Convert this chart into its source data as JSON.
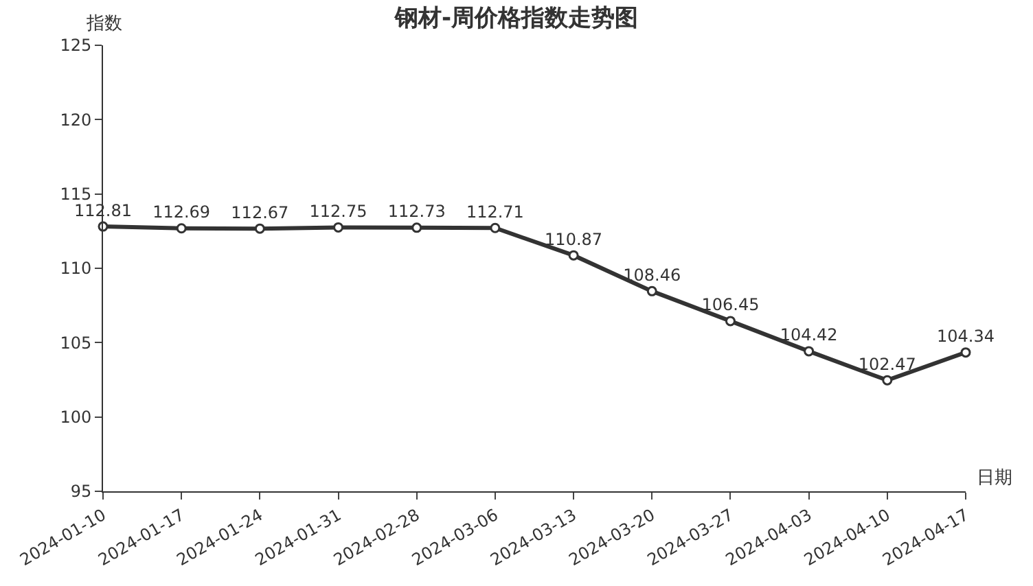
{
  "chart_data": {
    "type": "line",
    "title": "钢材-周价格指数走势图",
    "xlabel": "日期",
    "ylabel": "指数",
    "categories": [
      "2024-01-10",
      "2024-01-17",
      "2024-01-24",
      "2024-01-31",
      "2024-02-28",
      "2024-03-06",
      "2024-03-13",
      "2024-03-20",
      "2024-03-27",
      "2024-04-03",
      "2024-04-10",
      "2024-04-17"
    ],
    "series": [
      {
        "color": "#333333",
        "values": [
          112.81,
          112.69,
          112.67,
          112.75,
          112.73,
          112.71,
          110.87,
          108.46,
          106.45,
          104.42,
          102.47,
          104.34
        ]
      }
    ],
    "ylim": [
      95,
      125
    ],
    "yticks": [
      95,
      100,
      105,
      110,
      115,
      120,
      125
    ],
    "data_labels": true,
    "marker": "circle",
    "line_style": "solid"
  }
}
